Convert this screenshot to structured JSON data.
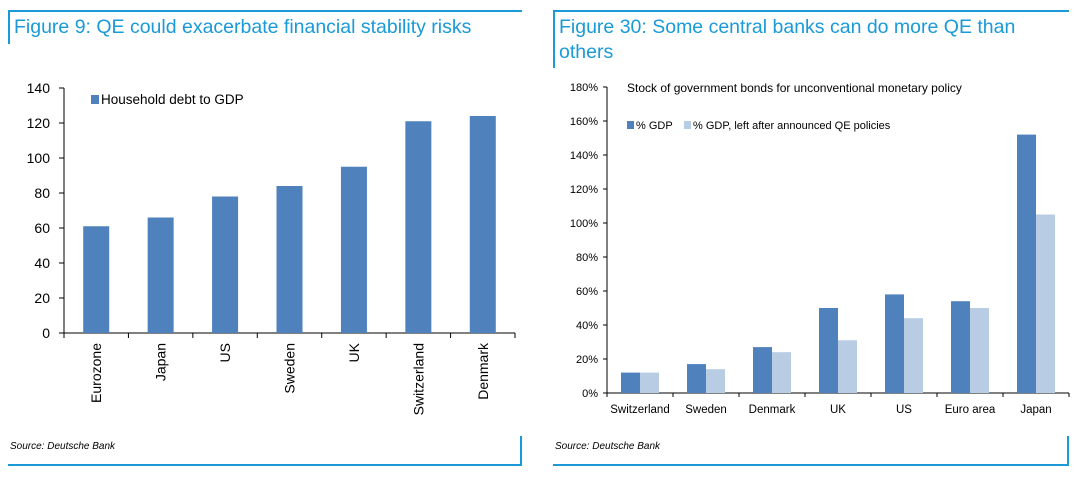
{
  "left": {
    "title": "Figure 9: QE could exacerbate financial stability risks",
    "source": "Source: Deutsche Bank"
  },
  "right": {
    "title": "Figure 30: Some central banks can do more QE than others",
    "source": "Source: Deutsche Bank"
  },
  "colors": {
    "accent": "#1a9ad7",
    "series_dark": "#4f81bd",
    "series_light": "#b8cce4"
  },
  "chart_data": [
    {
      "type": "bar",
      "title": "",
      "categories": [
        "Eurozone",
        "Japan",
        "US",
        "Sweden",
        "UK",
        "Switzerland",
        "Denmark"
      ],
      "series": [
        {
          "name": "Household debt to GDP",
          "values": [
            61,
            66,
            78,
            84,
            95,
            121,
            124
          ]
        }
      ],
      "yticks": [
        "0",
        "20",
        "40",
        "60",
        "80",
        "100",
        "120",
        "140"
      ],
      "ylim": [
        0,
        140
      ],
      "xlabel": "",
      "ylabel": "",
      "legend_position": "top-left",
      "grid": false
    },
    {
      "type": "bar",
      "title": "Stock of government bonds for unconventional monetary policy",
      "categories": [
        "Switzerland",
        "Sweden",
        "Denmark",
        "UK",
        "US",
        "Euro area",
        "Japan"
      ],
      "series": [
        {
          "name": "% GDP",
          "values": [
            12,
            17,
            27,
            50,
            58,
            54,
            152
          ]
        },
        {
          "name": "% GDP, left after announced QE policies",
          "values": [
            12,
            14,
            24,
            31,
            44,
            50,
            105
          ]
        }
      ],
      "yticks": [
        "0%",
        "20%",
        "40%",
        "60%",
        "80%",
        "100%",
        "120%",
        "140%",
        "160%",
        "180%"
      ],
      "ylim": [
        0,
        180
      ],
      "xlabel": "",
      "ylabel": "",
      "legend_position": "top-left",
      "grid": false
    }
  ]
}
